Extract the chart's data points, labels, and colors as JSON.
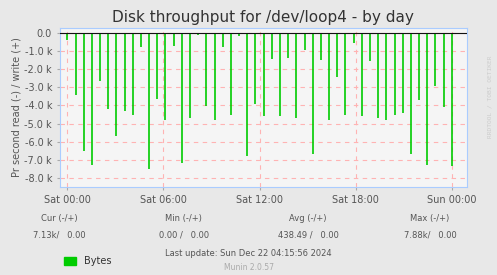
{
  "title": "Disk throughput for /dev/loop4 - by day",
  "ylabel": "Pr second read (-) / write (+)",
  "xlabel": "",
  "background_color": "#e8e8e8",
  "plot_background_color": "#f5f5f5",
  "grid_color": "#ffb3b3",
  "line_color": "#00cc00",
  "fill_color": "#00cc00",
  "border_color": "#aaaaaa",
  "ylim": [
    -8500,
    300
  ],
  "yticks": [
    0,
    -1000,
    -2000,
    -3000,
    -4000,
    -5000,
    -6000,
    -7000,
    -8000
  ],
  "ytick_labels": [
    "0.0",
    "-1.0 k",
    "-2.0 k",
    "-3.0 k",
    "-4.0 k",
    "-5.0 k",
    "-6.0 k",
    "-7.0 k",
    "-8.0 k"
  ],
  "xtick_labels": [
    "Sat 00:00",
    "Sat 06:00",
    "Sat 12:00",
    "Sat 18:00",
    "Sun 00:00"
  ],
  "xtick_positions": [
    0.0,
    0.25,
    0.5,
    0.75,
    1.0
  ],
  "num_spikes": 48,
  "legend_label": "Bytes",
  "cur_neg": "7.13k",
  "cur_pos": "0.00",
  "min_neg": "0.00",
  "min_pos": "0.00",
  "avg_neg": "438.49",
  "avg_pos": "0.00",
  "max_neg": "7.88k",
  "max_pos": "0.00",
  "last_update": "Last update: Sun Dec 22 04:15:56 2024",
  "munin_version": "Munin 2.0.57",
  "rrdtool_text": "RRDTOOL / TOBI OETIKER",
  "title_fontsize": 11,
  "label_fontsize": 7,
  "tick_fontsize": 7,
  "footer_fontsize": 6
}
